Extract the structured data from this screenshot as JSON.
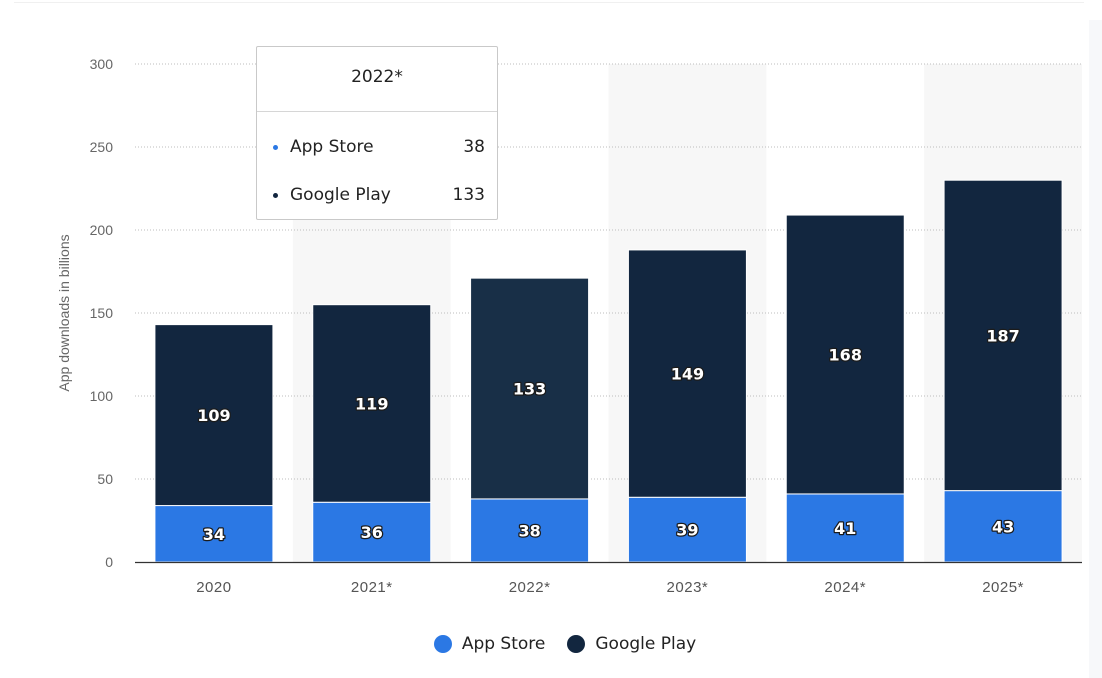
{
  "chart_data": {
    "type": "bar",
    "stacked": true,
    "categories": [
      "2020",
      "2021*",
      "2022*",
      "2023*",
      "2024*",
      "2025*"
    ],
    "series": [
      {
        "name": "App Store",
        "values": [
          34,
          36,
          38,
          39,
          41,
          43
        ],
        "color": "#2b78e4"
      },
      {
        "name": "Google Play",
        "values": [
          109,
          119,
          133,
          149,
          168,
          187
        ],
        "color": "#12263f"
      }
    ],
    "ylabel": "App downloads in billions",
    "ylim": [
      0,
      300
    ],
    "yticks": [
      0,
      50,
      100,
      150,
      200,
      250,
      300
    ],
    "grid": true,
    "legend_position": "bottom",
    "highlight_color": "#f7f7f7",
    "hover_color": "#182f47"
  },
  "tooltip": {
    "title": "2022*",
    "rows": [
      {
        "name": "App Store",
        "value": "38",
        "color": "#2b78e4"
      },
      {
        "name": "Google Play",
        "value": "133",
        "color": "#12263f"
      }
    ]
  }
}
